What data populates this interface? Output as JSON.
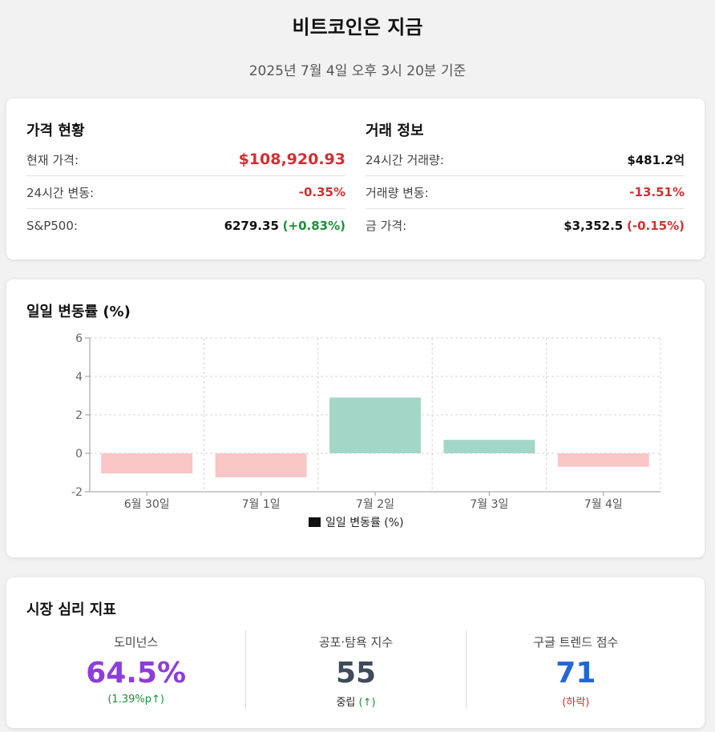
{
  "header": {
    "title": "비트코인은 지금",
    "subtitle": "2025년 7월 4일 오후 3시 20분 기준"
  },
  "price_status": {
    "title": "가격 현황",
    "current_price_label": "현재 가격:",
    "current_price_value": "$108,920.93",
    "change_24h_label": "24시간 변동:",
    "change_24h_value": "-0.35%",
    "sp500_label": "S&P500:",
    "sp500_value": "6279.35",
    "sp500_change": "(+0.83%)"
  },
  "trade_info": {
    "title": "거래 정보",
    "volume_label": "24시간 거래량:",
    "volume_value": "$481.2억",
    "volume_change_label": "거래량 변동:",
    "volume_change_value": "-13.51%",
    "gold_label": "금 가격:",
    "gold_value": "$3,352.5",
    "gold_change": "(-0.15%)"
  },
  "chart_data": {
    "type": "bar",
    "title": "일일 변동률 (%)",
    "categories": [
      "6월 30일",
      "7월 1일",
      "7월 2일",
      "7월 3일",
      "7월 4일"
    ],
    "series": [
      {
        "name": "일일 변동률 (%)",
        "values": [
          -1.05,
          -1.25,
          2.9,
          0.7,
          -0.7
        ]
      }
    ],
    "ylim": [
      -2,
      6
    ],
    "yticks": [
      -2,
      0,
      2,
      4,
      6
    ],
    "grid": true,
    "legend_position": "bottom",
    "colors": {
      "positive": "#a3d6c6",
      "negative": "#f8c6c5"
    }
  },
  "sentiment": {
    "title": "시장 심리 지표",
    "dominance": {
      "label": "도미넌스",
      "value": "64.5%",
      "sub": "(1.39%p↑)"
    },
    "fear_greed": {
      "label": "공포·탐욕 지수",
      "value": "55",
      "sub_text": "중립",
      "sub_arrow": "(↑)"
    },
    "google_trend": {
      "label": "구글 트렌드 점수",
      "value": "71",
      "sub": "(하락)"
    }
  },
  "colors": {
    "negative": "#d32f2f",
    "positive": "#1b8f3a",
    "dominance": "#8e3cdc",
    "fear_greed": "#3e4b5b",
    "google_trend": "#2166d6"
  }
}
